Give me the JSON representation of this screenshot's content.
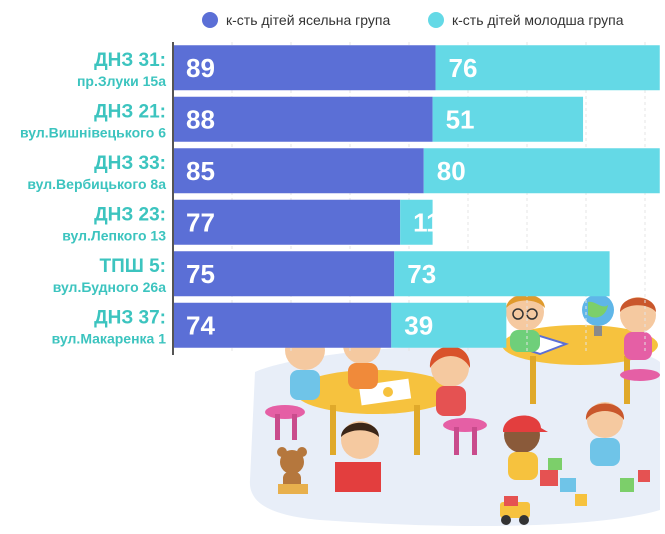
{
  "colors": {
    "series1": "#5b6fd6",
    "series2": "#64d9e6",
    "category_text": "#3cc4bf",
    "axis": "#555555"
  },
  "chart_data": {
    "type": "bar",
    "orientation": "horizontal",
    "stacked": true,
    "title": "",
    "xlabel": "",
    "ylabel": "",
    "xlim": [
      0,
      180
    ],
    "grid": true,
    "legend_position": "top",
    "categories": [
      {
        "name": "ДНЗ 31:",
        "address": "пр.Злуки 15а"
      },
      {
        "name": "ДНЗ 21:",
        "address": "вул.Вишнівецького 6"
      },
      {
        "name": "ДНЗ 33:",
        "address": "вул.Вербицького 8а"
      },
      {
        "name": "ДНЗ 23:",
        "address": "вул.Лепкого 13"
      },
      {
        "name": "ТПШ 5:",
        "address": "вул.Будного 26а"
      },
      {
        "name": "ДНЗ 37:",
        "address": "вул.Макаренка 1"
      }
    ],
    "series": [
      {
        "name": "к-сть дітей ясельна група",
        "values": [
          89,
          88,
          85,
          77,
          75,
          74
        ]
      },
      {
        "name": "к-сть дітей молодша група",
        "values": [
          76,
          51,
          80,
          11,
          73,
          39
        ]
      }
    ]
  },
  "illustration": {
    "icon": "kindergarten-kids-illustration"
  }
}
